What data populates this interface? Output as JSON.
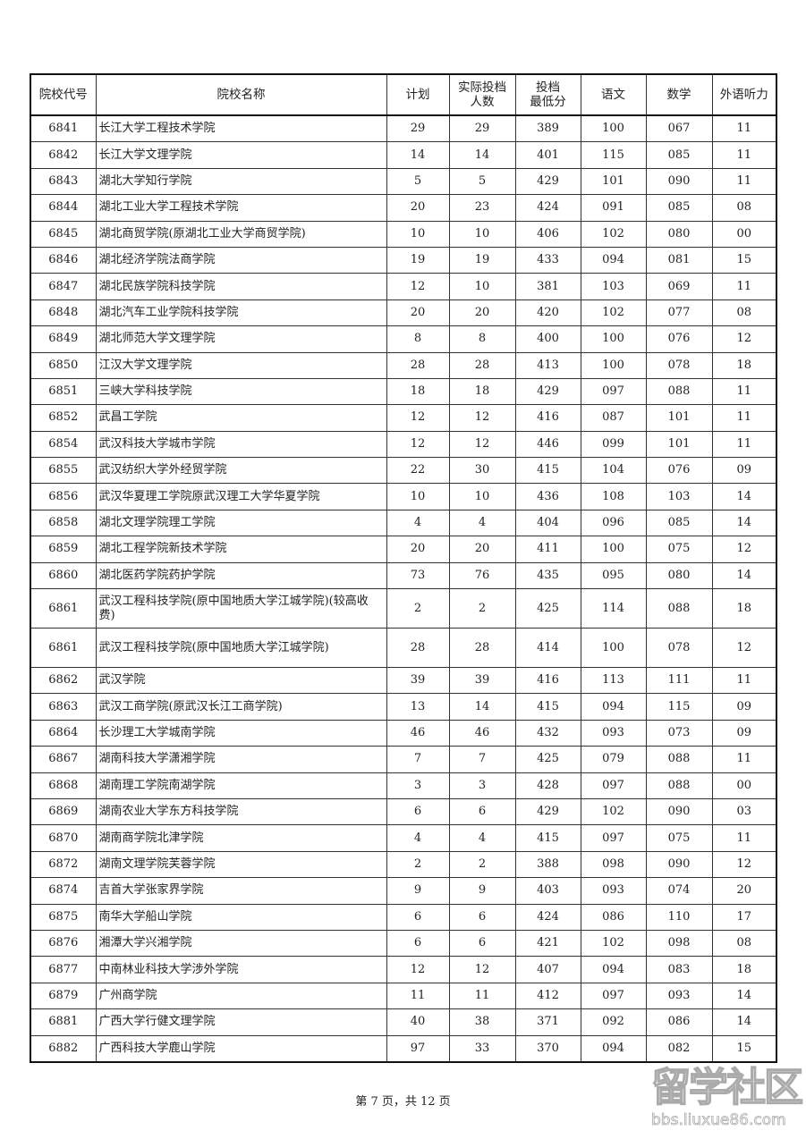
{
  "table": {
    "headers": [
      "院校代号",
      "院校名称",
      "计划",
      "实际投档\n人数",
      "投档\n最低分",
      "语文",
      "数学",
      "外语听力"
    ],
    "rows": [
      [
        "6841",
        "长江大学工程技术学院",
        "29",
        "29",
        "389",
        "100",
        "067",
        "11"
      ],
      [
        "6842",
        "长江大学文理学院",
        "14",
        "14",
        "401",
        "115",
        "085",
        "11"
      ],
      [
        "6843",
        "湖北大学知行学院",
        "5",
        "5",
        "429",
        "101",
        "090",
        "11"
      ],
      [
        "6844",
        "湖北工业大学工程技术学院",
        "20",
        "23",
        "424",
        "091",
        "085",
        "08"
      ],
      [
        "6845",
        "湖北商贸学院(原湖北工业大学商贸学院)",
        "10",
        "10",
        "406",
        "102",
        "080",
        "00"
      ],
      [
        "6846",
        "湖北经济学院法商学院",
        "19",
        "19",
        "433",
        "094",
        "081",
        "15"
      ],
      [
        "6847",
        "湖北民族学院科技学院",
        "12",
        "10",
        "381",
        "103",
        "069",
        "11"
      ],
      [
        "6848",
        "湖北汽车工业学院科技学院",
        "20",
        "20",
        "420",
        "102",
        "077",
        "08"
      ],
      [
        "6849",
        "湖北师范大学文理学院",
        "8",
        "8",
        "400",
        "100",
        "076",
        "12"
      ],
      [
        "6850",
        "江汉大学文理学院",
        "28",
        "28",
        "413",
        "100",
        "078",
        "18"
      ],
      [
        "6851",
        "三峡大学科技学院",
        "18",
        "18",
        "429",
        "097",
        "088",
        "11"
      ],
      [
        "6852",
        "武昌工学院",
        "12",
        "12",
        "416",
        "087",
        "101",
        "11"
      ],
      [
        "6854",
        "武汉科技大学城市学院",
        "12",
        "12",
        "446",
        "099",
        "101",
        "11"
      ],
      [
        "6855",
        "武汉纺织大学外经贸学院",
        "22",
        "30",
        "415",
        "104",
        "076",
        "09"
      ],
      [
        "6856",
        "武汉华夏理工学院原武汉理工大学华夏学院",
        "10",
        "10",
        "436",
        "108",
        "103",
        "14"
      ],
      [
        "6858",
        "湖北文理学院理工学院",
        "4",
        "4",
        "404",
        "096",
        "085",
        "14"
      ],
      [
        "6859",
        "湖北工程学院新技术学院",
        "20",
        "20",
        "411",
        "100",
        "075",
        "12"
      ],
      [
        "6860",
        "湖北医药学院药护学院",
        "73",
        "76",
        "435",
        "095",
        "080",
        "14"
      ],
      [
        "6861",
        "武汉工程科技学院(原中国地质大学江城学院)(较高收费)",
        "2",
        "2",
        "425",
        "114",
        "088",
        "18"
      ],
      [
        "6861",
        "武汉工程科技学院(原中国地质大学江城学院)",
        "28",
        "28",
        "414",
        "100",
        "078",
        "12"
      ],
      [
        "6862",
        "武汉学院",
        "39",
        "39",
        "416",
        "113",
        "111",
        "11"
      ],
      [
        "6863",
        "武汉工商学院(原武汉长江工商学院)",
        "13",
        "14",
        "415",
        "094",
        "115",
        "09"
      ],
      [
        "6864",
        "长沙理工大学城南学院",
        "46",
        "46",
        "432",
        "093",
        "073",
        "09"
      ],
      [
        "6867",
        "湖南科技大学潇湘学院",
        "7",
        "7",
        "425",
        "079",
        "088",
        "11"
      ],
      [
        "6868",
        "湖南理工学院南湖学院",
        "3",
        "3",
        "428",
        "097",
        "088",
        "00"
      ],
      [
        "6869",
        "湖南农业大学东方科技学院",
        "6",
        "6",
        "429",
        "102",
        "090",
        "03"
      ],
      [
        "6870",
        "湖南商学院北津学院",
        "4",
        "4",
        "415",
        "097",
        "075",
        "11"
      ],
      [
        "6872",
        "湖南文理学院芙蓉学院",
        "2",
        "2",
        "388",
        "098",
        "090",
        "12"
      ],
      [
        "6874",
        "吉首大学张家界学院",
        "9",
        "9",
        "403",
        "093",
        "074",
        "20"
      ],
      [
        "6875",
        "南华大学船山学院",
        "6",
        "6",
        "424",
        "086",
        "110",
        "17"
      ],
      [
        "6876",
        "湘潭大学兴湘学院",
        "6",
        "6",
        "421",
        "102",
        "098",
        "08"
      ],
      [
        "6877",
        "中南林业科技大学涉外学院",
        "12",
        "12",
        "407",
        "094",
        "083",
        "18"
      ],
      [
        "6879",
        "广州商学院",
        "11",
        "11",
        "412",
        "097",
        "093",
        "14"
      ],
      [
        "6881",
        "广西大学行健文理学院",
        "40",
        "38",
        "371",
        "092",
        "086",
        "14"
      ],
      [
        "6882",
        "广西科技大学鹿山学院",
        "97",
        "33",
        "370",
        "094",
        "082",
        "15"
      ]
    ]
  },
  "footer": {
    "page_label": "第 7 页，共 12 页"
  },
  "watermark": {
    "text": "留学社区",
    "url": "bbs.liuxue86.com"
  }
}
